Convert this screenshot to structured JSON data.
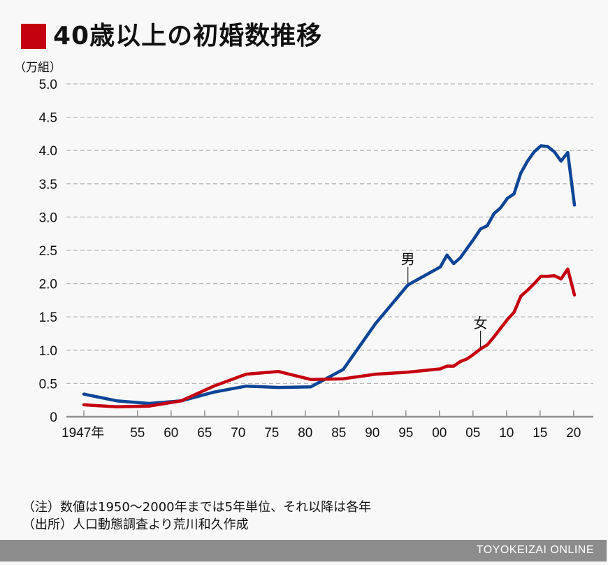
{
  "header": {
    "title": "40歳以上の初婚数推移",
    "title_marker_color": "#c4000f"
  },
  "notes": {
    "line1": "（注）数値は1950～2000年までは5年単位、それ以降は各年",
    "line2": "（出所）人口動態調査より荒川和久作成"
  },
  "footer": {
    "brand": "TOYOKEIZAI ONLINE"
  },
  "chart_data": {
    "type": "line",
    "title": "40歳以上の初婚数推移",
    "xlabel": "",
    "ylabel": "（万組）",
    "ylim": [
      0,
      5.0
    ],
    "yticks": [
      "0",
      "0.5",
      "1.0",
      "1.5",
      "2.0",
      "2.5",
      "3.0",
      "3.5",
      "4.0",
      "4.5",
      "5.0"
    ],
    "ytick_values": [
      0,
      0.5,
      1.0,
      1.5,
      2.0,
      2.5,
      3.0,
      3.5,
      4.0,
      4.5,
      5.0
    ],
    "xticks": [
      "1947年",
      "55",
      "60",
      "65",
      "70",
      "75",
      "80",
      "85",
      "90",
      "95",
      "00",
      "05",
      "10",
      "15",
      "20"
    ],
    "xtick_years": [
      1947,
      1955,
      1960,
      1965,
      1970,
      1975,
      1980,
      1985,
      1990,
      1995,
      2000,
      2005,
      2010,
      2015,
      2020
    ],
    "grid": true,
    "legend": "inline-labels",
    "x": [
      1947,
      1950,
      1955,
      1960,
      1965,
      1970,
      1975,
      1980,
      1985,
      1990,
      1995,
      2000,
      2001,
      2002,
      2003,
      2004,
      2005,
      2006,
      2007,
      2008,
      2009,
      2010,
      2011,
      2012,
      2013,
      2014,
      2015,
      2016,
      2017,
      2018,
      2019,
      2020
    ],
    "series": [
      {
        "name": "男",
        "color": "#0d4596",
        "label_year": 1995,
        "values": [
          0.34,
          0.24,
          0.2,
          0.24,
          0.37,
          0.46,
          0.44,
          0.45,
          0.71,
          1.4,
          1.98,
          2.25,
          2.43,
          2.3,
          2.39,
          2.53,
          2.67,
          2.82,
          2.87,
          3.05,
          3.14,
          3.28,
          3.35,
          3.66,
          3.84,
          3.98,
          4.07,
          4.06,
          3.98,
          3.84,
          3.97,
          3.18
        ]
      },
      {
        "name": "女",
        "color": "#c4000f",
        "label_year": 2006,
        "values": [
          0.18,
          0.15,
          0.16,
          0.24,
          0.46,
          0.64,
          0.68,
          0.56,
          0.57,
          0.64,
          0.67,
          0.72,
          0.76,
          0.76,
          0.83,
          0.87,
          0.94,
          1.02,
          1.08,
          1.2,
          1.33,
          1.46,
          1.57,
          1.81,
          1.9,
          2.0,
          2.11,
          2.11,
          2.12,
          2.07,
          2.22,
          1.83
        ]
      }
    ]
  }
}
